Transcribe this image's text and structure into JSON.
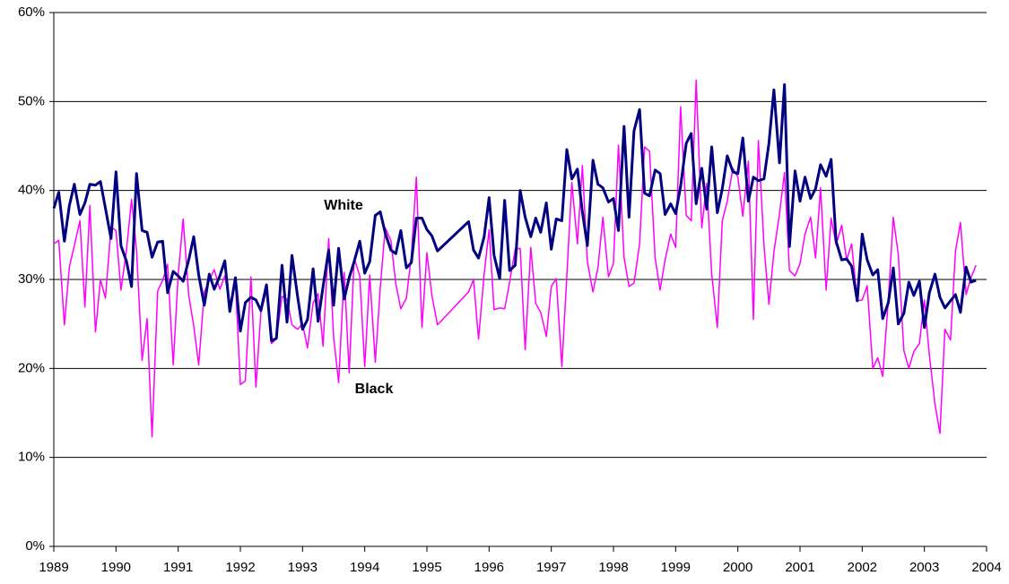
{
  "chart_data": {
    "type": "line",
    "x": [
      1989.0,
      1989.08,
      1989.17,
      1989.25,
      1989.33,
      1989.42,
      1989.5,
      1989.58,
      1989.67,
      1989.75,
      1989.83,
      1989.92,
      1990.0,
      1990.08,
      1990.17,
      1990.25,
      1990.33,
      1990.42,
      1990.5,
      1990.58,
      1990.67,
      1990.75,
      1990.83,
      1990.92,
      1991.0,
      1991.08,
      1991.17,
      1991.25,
      1991.33,
      1991.42,
      1991.5,
      1991.58,
      1991.67,
      1991.75,
      1991.83,
      1991.92,
      1992.0,
      1992.08,
      1992.17,
      1992.25,
      1992.33,
      1992.42,
      1992.5,
      1992.58,
      1992.67,
      1992.75,
      1992.83,
      1992.92,
      1993.0,
      1993.08,
      1993.17,
      1993.25,
      1993.33,
      1993.42,
      1993.5,
      1993.58,
      1993.67,
      1993.75,
      1993.83,
      1993.92,
      1994.0,
      1994.08,
      1994.17,
      1994.25,
      1994.33,
      1994.42,
      1994.5,
      1994.58,
      1994.67,
      1994.75,
      1994.83,
      1994.92,
      1995.0,
      1995.08,
      1995.17,
      1995.67,
      1995.75,
      1995.83,
      1995.92,
      1996.0,
      1996.08,
      1996.17,
      1996.25,
      1996.33,
      1996.42,
      1996.5,
      1996.58,
      1996.67,
      1996.75,
      1996.83,
      1996.92,
      1997.0,
      1997.08,
      1997.17,
      1997.25,
      1997.33,
      1997.42,
      1997.5,
      1997.58,
      1997.67,
      1997.75,
      1997.83,
      1997.92,
      1998.0,
      1998.08,
      1998.17,
      1998.25,
      1998.33,
      1998.42,
      1998.5,
      1998.58,
      1998.67,
      1998.75,
      1998.83,
      1998.92,
      1999.0,
      1999.08,
      1999.17,
      1999.25,
      1999.33,
      1999.42,
      1999.5,
      1999.58,
      1999.67,
      1999.75,
      1999.83,
      1999.92,
      2000.0,
      2000.08,
      2000.17,
      2000.25,
      2000.33,
      2000.42,
      2000.5,
      2000.58,
      2000.67,
      2000.75,
      2000.83,
      2000.92,
      2001.0,
      2001.08,
      2001.17,
      2001.25,
      2001.33,
      2001.42,
      2001.5,
      2001.58,
      2001.67,
      2001.75,
      2001.83,
      2001.92,
      2002.0,
      2002.08,
      2002.17,
      2002.25,
      2002.33,
      2002.42,
      2002.5,
      2002.58,
      2002.67,
      2002.75,
      2002.83,
      2002.92,
      2003.0,
      2003.08,
      2003.17,
      2003.25,
      2003.33,
      2003.42,
      2003.5,
      2003.58,
      2003.67,
      2003.75,
      2003.83
    ],
    "series": [
      {
        "name": "White",
        "color": "#000080",
        "values": [
          38,
          39.8,
          34.3,
          38.3,
          40.7,
          37.3,
          38.6,
          40.7,
          40.6,
          41,
          38,
          34.6,
          42.1,
          33.8,
          32,
          29.2,
          41.9,
          35.5,
          35.3,
          32.5,
          34.2,
          34.3,
          28.5,
          30.9,
          30.4,
          29.8,
          32.2,
          34.8,
          30.5,
          27.1,
          30.6,
          28.9,
          30.4,
          32.1,
          26.4,
          30.2,
          24.2,
          27.4,
          28,
          27.7,
          26.5,
          29.4,
          23.1,
          23.4,
          31.6,
          25.2,
          32.7,
          28.1,
          24.4,
          25.5,
          31.2,
          25.3,
          29.2,
          33.3,
          27.1,
          33.5,
          27.8,
          30.2,
          32,
          34.3,
          30.7,
          32,
          37.2,
          37.6,
          35.2,
          33.3,
          32.9,
          35.5,
          31.3,
          31.9,
          36.9,
          36.9,
          35.6,
          34.9,
          33.2,
          36.5,
          33.3,
          32.4,
          34.8,
          39.2,
          32.7,
          30.1,
          38.9,
          31,
          31.6,
          40,
          37,
          34.8,
          36.9,
          35.3,
          38.6,
          33.4,
          36.8,
          36.6,
          44.6,
          41.3,
          42.4,
          37.6,
          33.8,
          43.4,
          40.7,
          40.3,
          38.7,
          39.1,
          35.5,
          47.2,
          37,
          46.7,
          49.1,
          39.7,
          39.4,
          42.3,
          41.9,
          37.3,
          38.5,
          37.4,
          40.5,
          45.3,
          46.4,
          38.5,
          42.5,
          37.9,
          44.9,
          37.5,
          40.2,
          43.9,
          42.1,
          41.9,
          45.9,
          38.8,
          41.5,
          41.1,
          41.3,
          45.3,
          51.3,
          43.1,
          51.9,
          33.7,
          42.2,
          38.8,
          41.5,
          39.1,
          40.2,
          42.9,
          41.6,
          43.5,
          34.3,
          32.2,
          32.3,
          31.5,
          27.6,
          35.1,
          32.2,
          30.5,
          31.1,
          25.6,
          27.4,
          31.3,
          25,
          26.2,
          29.7,
          28.2,
          29.8,
          24.6,
          28.5,
          30.6,
          28,
          26.8,
          27.6,
          28.3,
          26.3,
          31.4,
          29.7,
          29.9
        ]
      },
      {
        "name": "Black",
        "color": "#ff00ff",
        "values": [
          34,
          34.4,
          24.9,
          31.4,
          33.8,
          36.6,
          26.9,
          38.3,
          24.1,
          30,
          27.9,
          35.9,
          35.5,
          28.8,
          33.4,
          39,
          33.3,
          20.9,
          25.6,
          12.3,
          28.7,
          29.9,
          31.7,
          20.4,
          30.5,
          36.8,
          28.2,
          24.8,
          20.4,
          28.6,
          29.9,
          31.1,
          28.9,
          30.4,
          27.2,
          29.8,
          18.2,
          18.6,
          30.3,
          17.9,
          26.3,
          28.7,
          22.8,
          23.3,
          28.1,
          27.8,
          24.9,
          24.4,
          25,
          22.3,
          27.4,
          28.4,
          22.5,
          34.6,
          23.5,
          18.4,
          30.8,
          19.5,
          32.4,
          30.4,
          20.2,
          30.5,
          20.7,
          29.1,
          35.8,
          34.4,
          29.5,
          26.7,
          27.9,
          32.7,
          41.5,
          24.6,
          33,
          28.2,
          24.9,
          28.6,
          30,
          23.3,
          30.6,
          35.6,
          26.6,
          26.8,
          26.7,
          29.7,
          33.4,
          33.5,
          22.1,
          33.6,
          27.3,
          26.3,
          23.6,
          29.2,
          30.1,
          20.2,
          30.4,
          40.9,
          34,
          42.8,
          32,
          28.6,
          31.3,
          37,
          30.3,
          31.8,
          45.1,
          32.5,
          29.2,
          29.6,
          34,
          44.9,
          44.4,
          32.4,
          28.8,
          32.2,
          35.1,
          33.6,
          49.4,
          37.2,
          36.6,
          52.4,
          35.8,
          40.8,
          30.6,
          24.6,
          36.6,
          38.8,
          42.5,
          41.5,
          37.1,
          43.3,
          25.5,
          45.6,
          33.9,
          27.2,
          33.1,
          37.4,
          42,
          31,
          30.4,
          31.8,
          35.1,
          37,
          32.4,
          40.3,
          28.8,
          36.9,
          33.9,
          36.1,
          32.2,
          34,
          27.6,
          27.7,
          29.3,
          20,
          21.2,
          19.1,
          27.7,
          37,
          32.8,
          22,
          20,
          21.9,
          22.8,
          27.7,
          21.5,
          16,
          12.7,
          24.4,
          23.2,
          33.2,
          36.4,
          28.3,
          30.2,
          31.6
        ]
      }
    ],
    "xlim": [
      1989,
      2004
    ],
    "xticks": [
      1989,
      1990,
      1991,
      1992,
      1993,
      1994,
      1995,
      1996,
      1997,
      1998,
      1999,
      2000,
      2001,
      2002,
      2003,
      2004
    ],
    "ylim": [
      0,
      60
    ],
    "yticks": [
      {
        "value": 0,
        "label": "0%"
      },
      {
        "value": 10,
        "label": "10%"
      },
      {
        "value": 20,
        "label": "20%"
      },
      {
        "value": 30,
        "label": "30%"
      },
      {
        "value": 40,
        "label": "40%"
      },
      {
        "value": 50,
        "label": "50%"
      },
      {
        "value": 60,
        "label": "60%"
      }
    ],
    "grid": true
  }
}
